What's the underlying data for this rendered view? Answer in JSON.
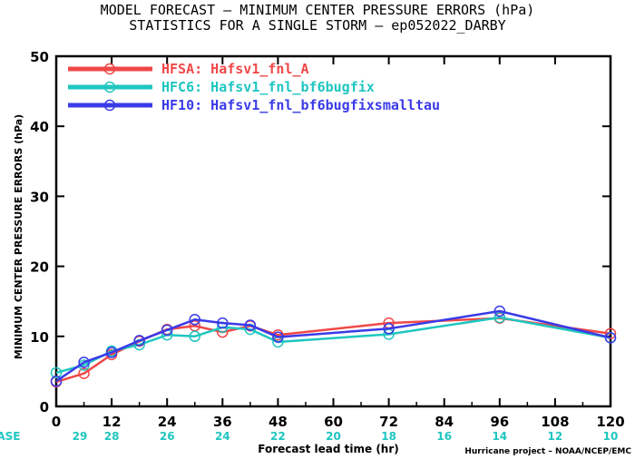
{
  "chart_data": {
    "type": "line",
    "title": "MODEL FORECAST – MINIMUM CENTER PRESSURE ERRORS (hPa)",
    "subtitle": "STATISTICS FOR A SINGLE STORM – ep052022_DARBY",
    "xlabel": "Forecast lead time (hr)",
    "ylabel": "MINIMUM CENTER PRESSURE ERRORS (hPa)",
    "xlim": [
      0,
      120
    ],
    "ylim": [
      0,
      50
    ],
    "x_ticks": [
      0,
      12,
      24,
      36,
      48,
      60,
      72,
      84,
      96,
      108,
      120
    ],
    "y_ticks": [
      0,
      10,
      20,
      30,
      40,
      50
    ],
    "grid": false,
    "legend_position": "top-left",
    "case_label": "#CASE",
    "cases": [
      29,
      28,
      26,
      24,
      22,
      20,
      18,
      16,
      14,
      12,
      10
    ],
    "credit": "Hurricane project – NOAA/NCEP/EMC",
    "series": [
      {
        "name": "HFSA: Hafsv1_fnl_A",
        "color": "#f04848",
        "x": [
          0,
          6,
          12,
          18,
          24,
          30,
          36,
          42,
          48,
          72,
          96,
          120
        ],
        "y": [
          3.5,
          4.7,
          7.4,
          9.3,
          11.0,
          11.5,
          10.6,
          11.5,
          10.2,
          11.9,
          12.6,
          10.4
        ]
      },
      {
        "name": "HFC6: Hafsv1_fnl_bf6bugfix",
        "color": "#1fc6c0",
        "x": [
          0,
          6,
          12,
          18,
          24,
          30,
          36,
          42,
          48,
          72,
          96,
          120
        ],
        "y": [
          4.8,
          5.9,
          7.9,
          8.8,
          10.2,
          10.0,
          11.3,
          11.0,
          9.2,
          10.3,
          12.7,
          9.8
        ]
      },
      {
        "name": "HF10: Hafsv1_fnl_bf6bugfixsmalltau",
        "color": "#3a3ae8",
        "x": [
          0,
          6,
          12,
          18,
          24,
          30,
          36,
          42,
          48,
          72,
          96,
          120
        ],
        "y": [
          3.6,
          6.3,
          7.7,
          9.4,
          10.9,
          12.4,
          11.9,
          11.6,
          9.9,
          11.1,
          13.6,
          9.8
        ]
      }
    ]
  }
}
